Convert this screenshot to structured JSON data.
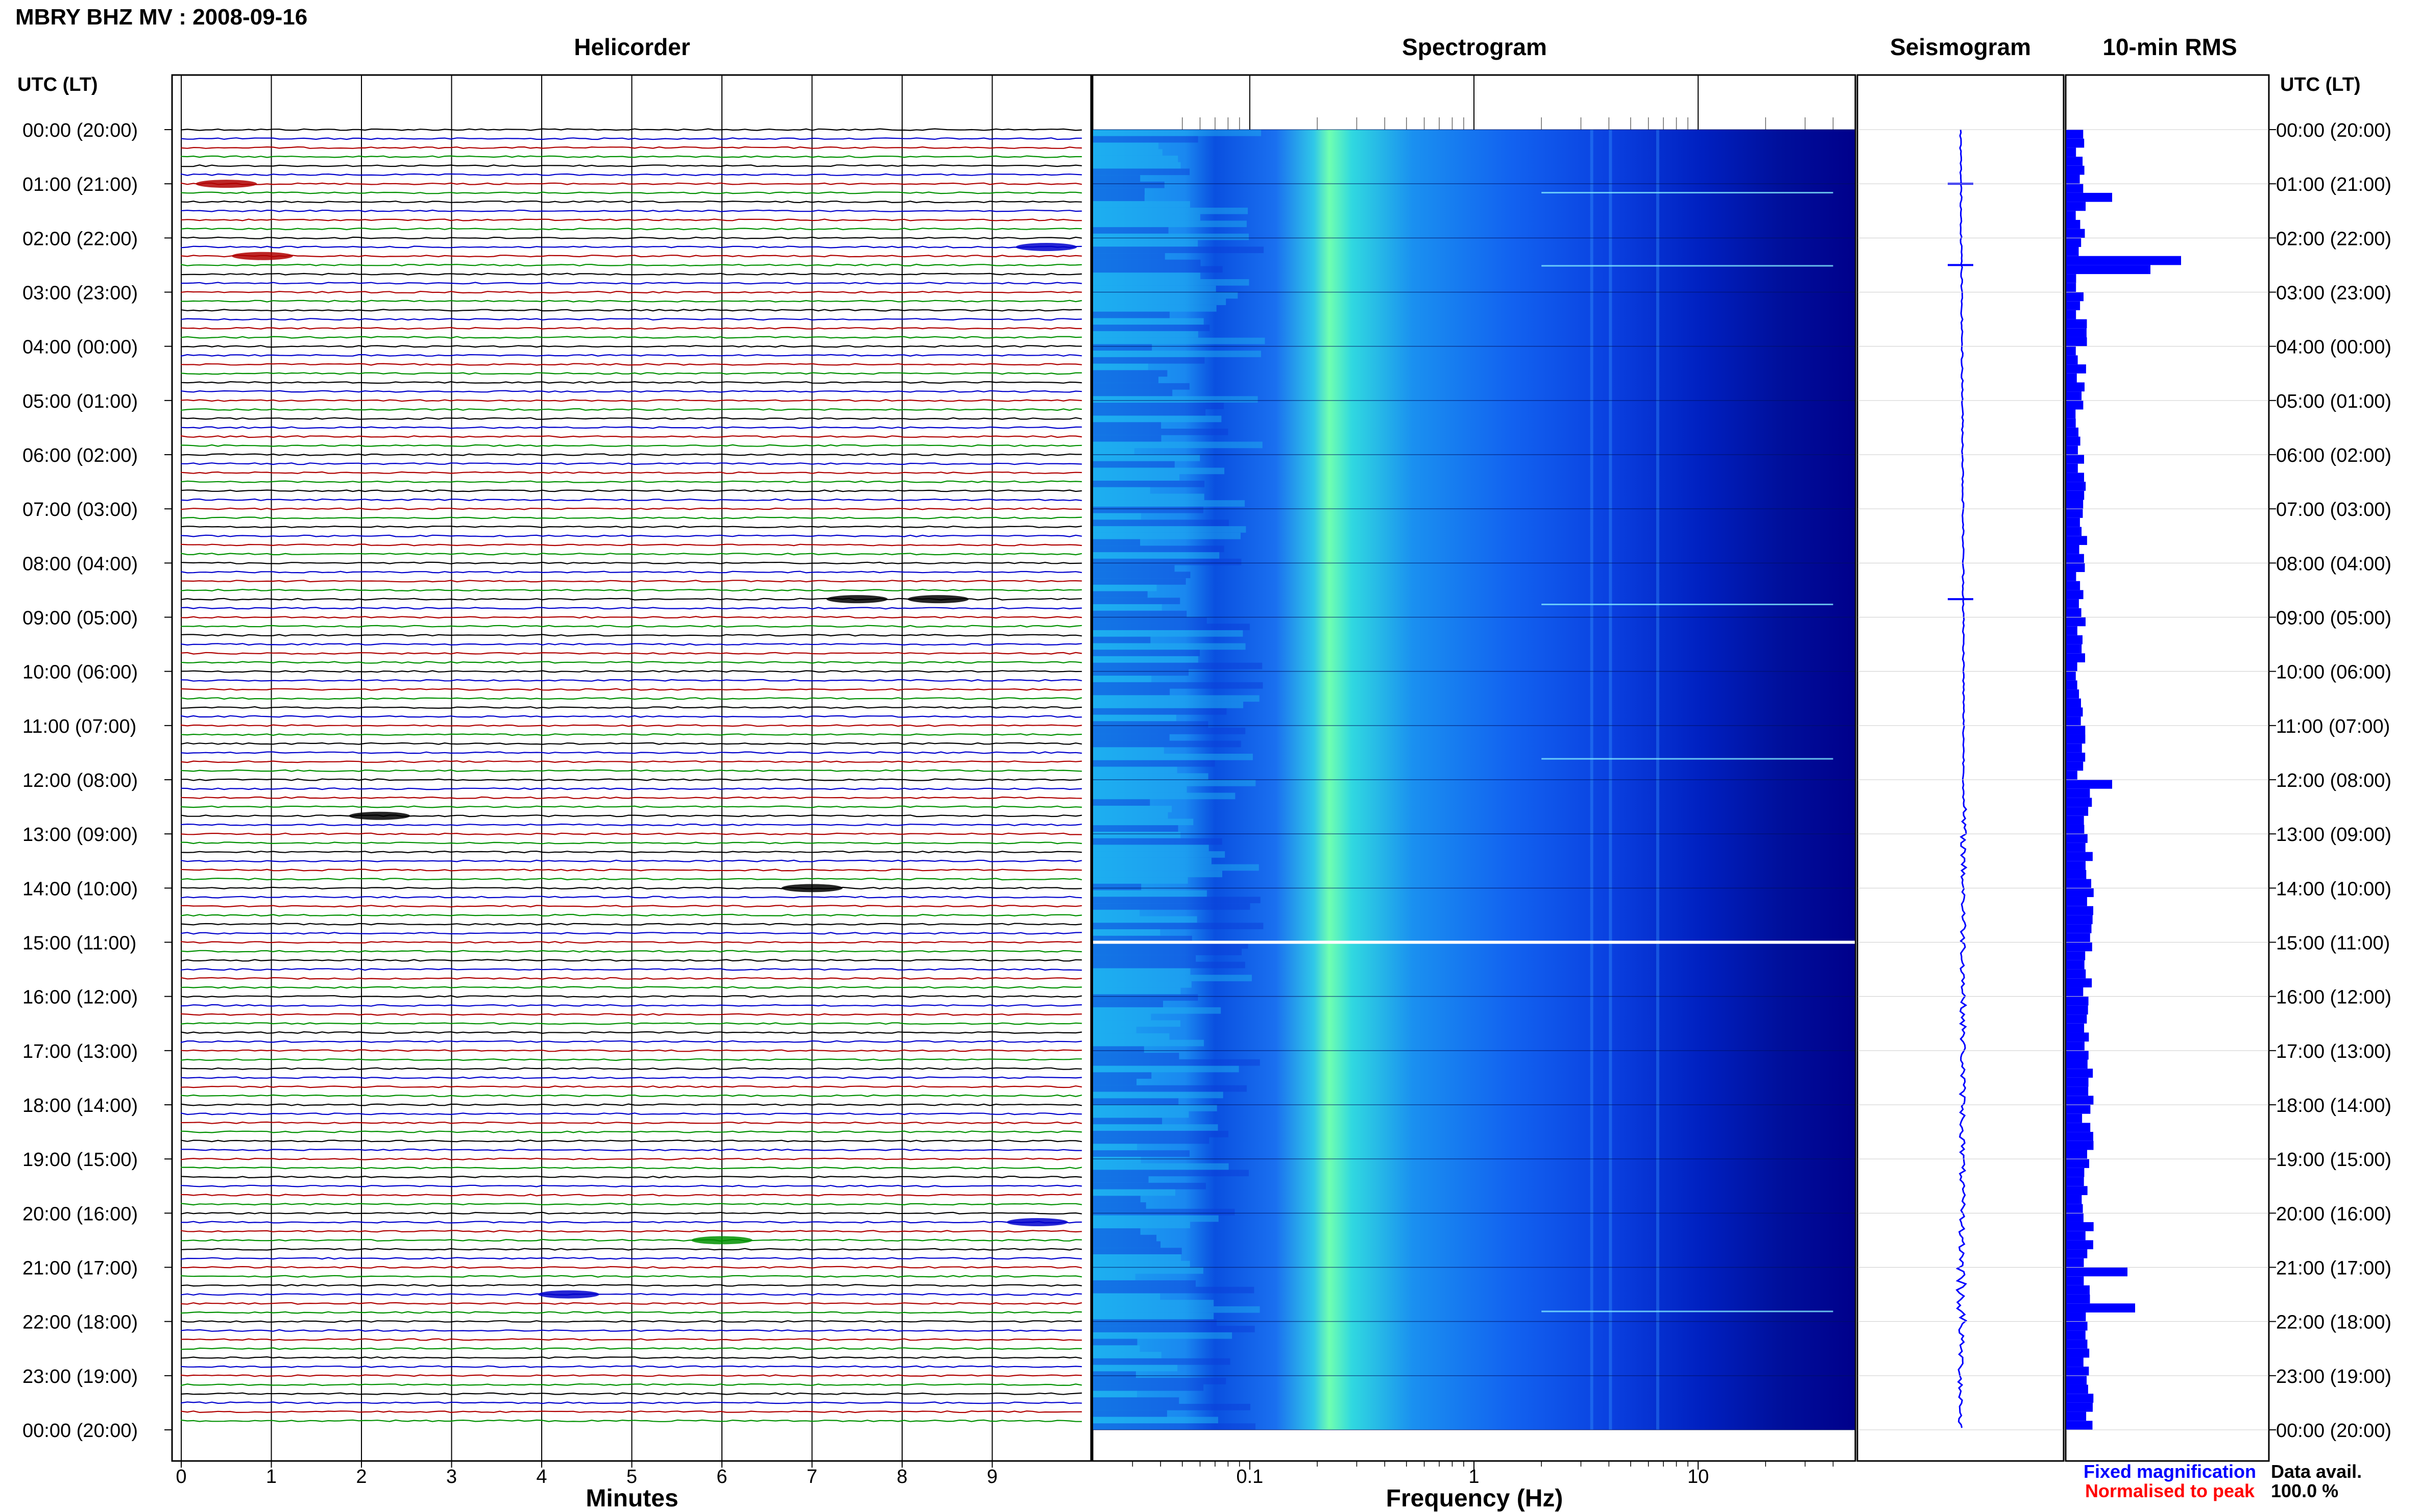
{
  "title": "MBRY BHZ MV : 2008-09-16",
  "panels": {
    "helicorder": "Helicorder",
    "spectrogram": "Spectrogram",
    "seismogram": "Seismogram",
    "rms": "10-min RMS"
  },
  "axis_left_header": "UTC (LT)",
  "axis_right_header": "UTC (LT)",
  "time_labels": [
    "00:00 (20:00)",
    "01:00 (21:00)",
    "02:00 (22:00)",
    "03:00 (23:00)",
    "04:00 (00:00)",
    "05:00 (01:00)",
    "06:00 (02:00)",
    "07:00 (03:00)",
    "08:00 (04:00)",
    "09:00 (05:00)",
    "10:00 (06:00)",
    "11:00 (07:00)",
    "12:00 (08:00)",
    "13:00 (09:00)",
    "14:00 (10:00)",
    "15:00 (11:00)",
    "16:00 (12:00)",
    "17:00 (13:00)",
    "18:00 (14:00)",
    "19:00 (15:00)",
    "20:00 (16:00)",
    "21:00 (17:00)",
    "22:00 (18:00)",
    "23:00 (19:00)",
    "00:00 (20:00)"
  ],
  "helicorder_x": {
    "label": "Minutes",
    "ticks": [
      "0",
      "1",
      "2",
      "3",
      "4",
      "5",
      "6",
      "7",
      "8",
      "9"
    ]
  },
  "spectrogram_x": {
    "label": "Frequency (Hz)",
    "ticks": [
      "0.1",
      "1",
      "10"
    ]
  },
  "legend": {
    "fixed": "Fixed magnification",
    "normalised": "Normalised to peak"
  },
  "data_avail": {
    "label": "Data avail.",
    "value": "100.0 %"
  },
  "colors": {
    "trace_cycle": [
      "#000000",
      "#0000cc",
      "#b00000",
      "#009000"
    ],
    "spectrogram_low": "#00008b",
    "spectrogram_mid": "#1060ff",
    "spectrogram_high": "#40ffb0",
    "rms_fill": "#0000ff",
    "legend_fixed": "#0000ff",
    "legend_normalised": "#ff0000"
  },
  "chart_data": [
    {
      "type": "line",
      "title": "Helicorder",
      "xlabel": "Minutes",
      "xlim": [
        0,
        10
      ],
      "ylim": [
        "00:00 (20:00)",
        "00:00 (20:00)"
      ],
      "trace_interval_minutes": 10,
      "events": [
        {
          "time_utc": "01:00",
          "minute": 0.5
        },
        {
          "time_utc": "02:20",
          "minute": 0.9
        },
        {
          "time_utc": "02:10",
          "minute": 9.6
        },
        {
          "time_utc": "08:40",
          "minute": 7.5
        },
        {
          "time_utc": "08:40",
          "minute": 8.4
        },
        {
          "time_utc": "12:40",
          "minute": 2.2
        },
        {
          "time_utc": "14:00",
          "minute": 7.0
        },
        {
          "time_utc": "20:10",
          "minute": 9.5
        },
        {
          "time_utc": "20:30",
          "minute": 6.0
        },
        {
          "time_utc": "21:30",
          "minute": 4.3
        }
      ]
    },
    {
      "type": "heatmap",
      "title": "Spectrogram",
      "xlabel": "Frequency (Hz)",
      "x_scale": "log",
      "xlim": [
        0.02,
        50
      ],
      "peak_band_hz": [
        0.2,
        0.3
      ],
      "gap_utc": "15:00"
    },
    {
      "type": "line",
      "title": "Seismogram",
      "spikes_utc": [
        "01:00",
        "02:30",
        "08:40"
      ]
    },
    {
      "type": "bar",
      "title": "10-min RMS",
      "orientation": "horizontal",
      "notable": [
        {
          "time_utc": "02:20",
          "relative": 0.75
        },
        {
          "time_utc": "02:30",
          "relative": 0.55
        },
        {
          "time_utc": "01:10",
          "relative": 0.3
        },
        {
          "time_utc": "12:00",
          "relative": 0.3
        },
        {
          "time_utc": "21:40",
          "relative": 0.45
        },
        {
          "time_utc": "21:00",
          "relative": 0.4
        }
      ]
    }
  ]
}
